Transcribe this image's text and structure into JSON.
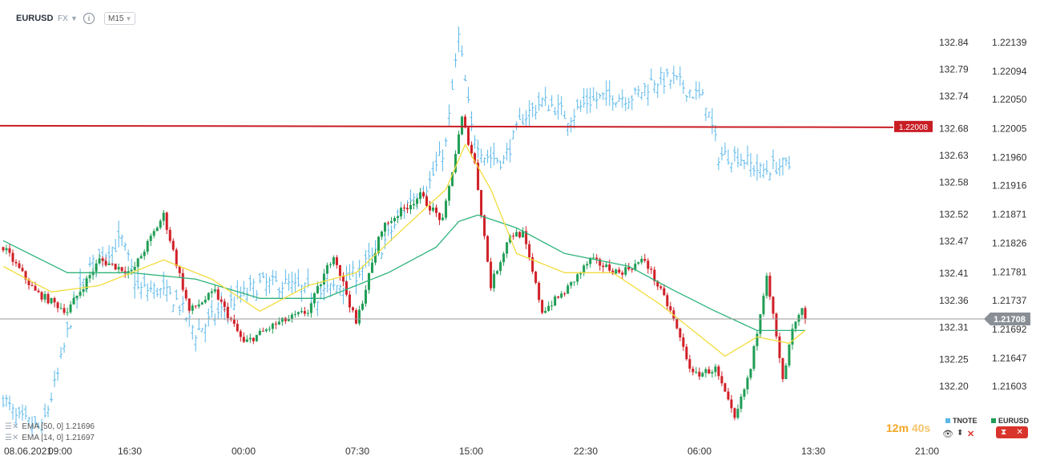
{
  "header": {
    "symbol": "EURUSD",
    "market": "FX",
    "timeframe": "M15"
  },
  "indicators": [
    {
      "label": "EMA [50, 0] 1.21696",
      "color": "#2db37a"
    },
    {
      "label": "EMA [14, 0] 1.21697",
      "color": "#f2dc3c"
    }
  ],
  "timer": {
    "minutes": "12m",
    "seconds": "40s"
  },
  "legend": [
    {
      "label": "TNOTE",
      "color": "#5bb8e8"
    },
    {
      "label": "EURUSD",
      "color": "#1f9d55"
    }
  ],
  "colors": {
    "up": "#1f9d55",
    "down": "#d01f26",
    "tnote": "#5bb8e8",
    "ema50": "#2db37a",
    "ema14": "#f2dc3c",
    "level_line": "#c81d25",
    "price_line": "#9a9a9a",
    "axis_text": "#333333"
  },
  "chart_data": {
    "type": "candlestick",
    "symbol": "EURUSD",
    "overlay_symbol": "TNOTE",
    "x_tick_labels": [
      "08.06.2021",
      "09:00",
      "16:30",
      "00:00",
      "07:30",
      "15:00",
      "22:30",
      "06:00",
      "13:30",
      "21:00"
    ],
    "tnote_axis_ticks": [
      132.84,
      132.79,
      132.74,
      132.68,
      132.63,
      132.58,
      132.52,
      132.47,
      132.41,
      132.36,
      132.31,
      132.25,
      132.2
    ],
    "eurusd_axis_ticks": [
      1.22139,
      1.22094,
      1.2205,
      1.22005,
      1.2196,
      1.21916,
      1.21871,
      1.21826,
      1.21781,
      1.21737,
      1.21692,
      1.21647,
      1.21603
    ],
    "eurusd_range": [
      1.2155,
      1.2219
    ],
    "tnote_range": [
      132.14,
      132.89
    ],
    "horizontal_level": {
      "label": "1.22008",
      "value": 1.22008
    },
    "current_price": {
      "label": "1.21708",
      "value": 1.21708
    },
    "eurusd_anchors": [
      [
        0,
        1.2182
      ],
      [
        10,
        1.2175
      ],
      [
        20,
        1.2172
      ],
      [
        30,
        1.218
      ],
      [
        40,
        1.2178
      ],
      [
        50,
        1.2187
      ],
      [
        58,
        1.2172
      ],
      [
        66,
        1.2175
      ],
      [
        75,
        1.2167
      ],
      [
        85,
        1.217
      ],
      [
        95,
        1.2172
      ],
      [
        103,
        1.2181
      ],
      [
        110,
        1.217
      ],
      [
        118,
        1.2185
      ],
      [
        125,
        1.2188
      ],
      [
        130,
        1.219
      ],
      [
        137,
        1.2186
      ],
      [
        143,
        1.2202
      ],
      [
        147,
        1.2195
      ],
      [
        152,
        1.2176
      ],
      [
        158,
        1.2184
      ],
      [
        162,
        1.2184
      ],
      [
        168,
        1.2172
      ],
      [
        175,
        1.2175
      ],
      [
        183,
        1.218
      ],
      [
        192,
        1.2178
      ],
      [
        200,
        1.218
      ],
      [
        208,
        1.2172
      ],
      [
        215,
        1.2162
      ],
      [
        222,
        1.2163
      ],
      [
        228,
        1.2155
      ],
      [
        233,
        1.2163
      ],
      [
        238,
        1.2178
      ],
      [
        243,
        1.2161
      ],
      [
        246,
        1.2169
      ],
      [
        250,
        1.2173
      ]
    ],
    "tnote_anchors": [
      [
        0,
        132.18
      ],
      [
        4,
        132.14
      ],
      [
        12,
        132.12
      ],
      [
        17,
        132.22
      ],
      [
        22,
        132.35
      ],
      [
        27,
        132.42
      ],
      [
        32,
        132.45
      ],
      [
        37,
        132.47
      ],
      [
        42,
        132.38
      ],
      [
        48,
        132.38
      ],
      [
        54,
        132.36
      ],
      [
        60,
        132.3
      ],
      [
        66,
        132.33
      ],
      [
        72,
        132.36
      ],
      [
        80,
        132.39
      ],
      [
        88,
        132.39
      ],
      [
        98,
        132.37
      ],
      [
        105,
        132.39
      ],
      [
        110,
        132.41
      ],
      [
        117,
        132.45
      ],
      [
        122,
        132.5
      ],
      [
        127,
        132.55
      ],
      [
        133,
        132.58
      ],
      [
        138,
        132.65
      ],
      [
        142,
        132.85
      ],
      [
        146,
        132.68
      ],
      [
        150,
        132.63
      ],
      [
        156,
        132.62
      ],
      [
        162,
        132.7
      ],
      [
        168,
        132.73
      ],
      [
        172,
        132.72
      ],
      [
        176,
        132.7
      ],
      [
        182,
        132.73
      ],
      [
        190,
        132.74
      ],
      [
        197,
        132.74
      ],
      [
        203,
        132.77
      ],
      [
        209,
        132.77
      ],
      [
        214,
        132.75
      ],
      [
        219,
        132.73
      ],
      [
        223,
        132.63
      ],
      [
        229,
        132.63
      ],
      [
        236,
        132.6
      ],
      [
        241,
        132.61
      ],
      [
        245,
        132.61
      ]
    ],
    "ema50_anchors": [
      [
        0,
        1.2183
      ],
      [
        20,
        1.2178
      ],
      [
        40,
        1.2178
      ],
      [
        60,
        1.2177
      ],
      [
        80,
        1.2174
      ],
      [
        100,
        1.2174
      ],
      [
        120,
        1.2178
      ],
      [
        135,
        1.2182
      ],
      [
        142,
        1.2186
      ],
      [
        148,
        1.2187
      ],
      [
        160,
        1.2185
      ],
      [
        175,
        1.2181
      ],
      [
        195,
        1.2179
      ],
      [
        210,
        1.2175
      ],
      [
        222,
        1.2172
      ],
      [
        235,
        1.2169
      ],
      [
        245,
        1.2169
      ],
      [
        250,
        1.2169
      ]
    ],
    "ema14_anchors": [
      [
        0,
        1.2179
      ],
      [
        15,
        1.2175
      ],
      [
        30,
        1.2176
      ],
      [
        50,
        1.218
      ],
      [
        65,
        1.2177
      ],
      [
        80,
        1.2172
      ],
      [
        95,
        1.2176
      ],
      [
        110,
        1.2178
      ],
      [
        125,
        1.2185
      ],
      [
        138,
        1.2191
      ],
      [
        144,
        1.2198
      ],
      [
        152,
        1.2191
      ],
      [
        160,
        1.2181
      ],
      [
        175,
        1.2178
      ],
      [
        190,
        1.2178
      ],
      [
        205,
        1.2173
      ],
      [
        215,
        1.2169
      ],
      [
        225,
        1.2165
      ],
      [
        235,
        1.2168
      ],
      [
        245,
        1.2167
      ],
      [
        250,
        1.2169
      ]
    ]
  }
}
